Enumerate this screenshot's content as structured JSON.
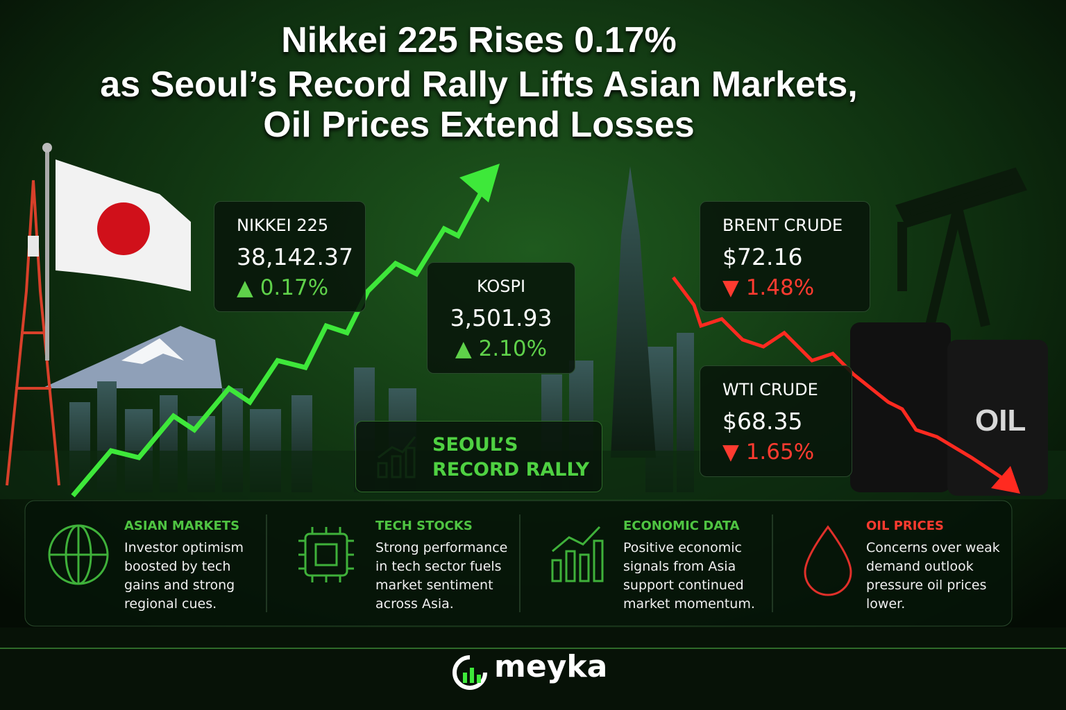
{
  "header": {
    "title_lines": [
      "Nikkei 225 Rises 0.17%",
      "as Seoul’s Record Rally Lifts Asian Markets,",
      "Oil Prices Extend Losses"
    ]
  },
  "cards": [
    {
      "label": "NIKKEI 225",
      "value": "38,142.37",
      "change": "0.17%",
      "direction": "up"
    },
    {
      "label": "KOSPI",
      "value": "3,501.93",
      "change": "2.10%",
      "direction": "up"
    },
    {
      "label": "BRENT CRUDE",
      "value": "$72.16",
      "change": "1.48%",
      "direction": "down"
    },
    {
      "label": "WTI CRUDE",
      "value": "$68.35",
      "change": "1.65%",
      "direction": "down"
    }
  ],
  "badge": {
    "lines": [
      "SEOUL’S",
      "RECORD RALLY"
    ]
  },
  "barrel_label": "OIL",
  "panels": [
    {
      "title": "ASIAN MARKETS",
      "text": "Investor optimism boosted by tech gains and strong regional cues."
    },
    {
      "title": "TECH STOCKS",
      "text": "Strong performance in tech sector fuels market sentiment across Asia."
    },
    {
      "title": "ECONOMIC DATA",
      "text": "Positive economic signals from Asia support continued market momentum."
    },
    {
      "title": "OIL PRICES",
      "text": "Concerns over weak demand outlook pressure oil prices lower."
    }
  ],
  "footer": {
    "brand": "meyka"
  }
}
